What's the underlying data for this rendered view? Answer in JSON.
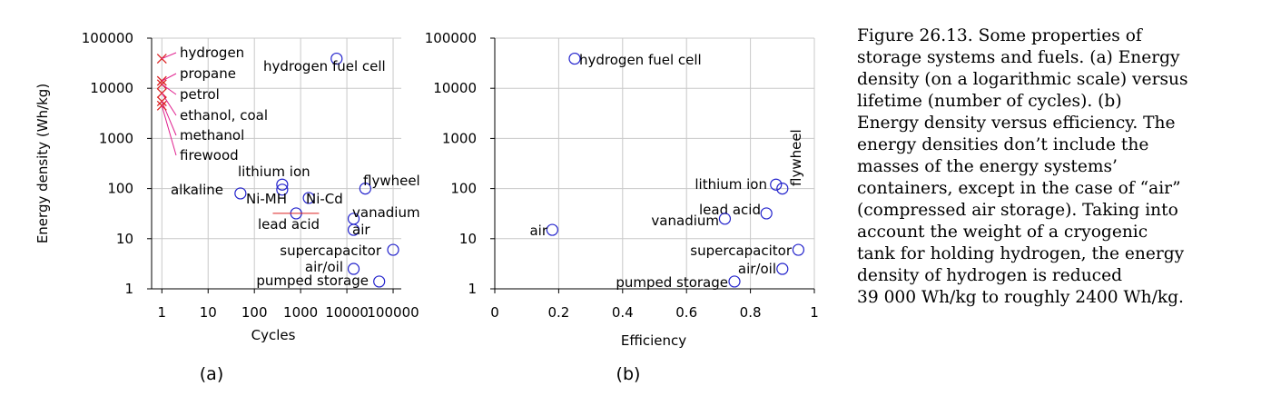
{
  "chart_data": [
    {
      "type": "scatter",
      "subplot_label": "(a)",
      "xlabel": "Cycles",
      "ylabel": "Energy density (Wh/kg)",
      "xscale": "log",
      "yscale": "log",
      "xlim": [
        0.6,
        150000
      ],
      "ylim": [
        1,
        100000
      ],
      "x_ticks": [
        "1",
        "10",
        "100",
        "1000",
        "10000",
        "100000"
      ],
      "y_ticks": [
        "1",
        "10",
        "100",
        "1000",
        "10000",
        "100000"
      ],
      "grid": true,
      "series": [
        {
          "marker": "circle",
          "color": "#2222cc",
          "points": [
            {
              "label": "hydrogen fuel cell",
              "x": 6000,
              "y": 39000
            },
            {
              "label": "alkaline",
              "x": 50,
              "y": 80
            },
            {
              "label": "lithium ion",
              "x": 400,
              "y": 120
            },
            {
              "label": "Ni-MH",
              "x": 400,
              "y": 95
            },
            {
              "label": "Ni-Cd",
              "x": 1500,
              "y": 65
            },
            {
              "label": "lead acid",
              "x": 800,
              "y": 32
            },
            {
              "label": "flywheel",
              "x": 25000,
              "y": 100
            },
            {
              "label": "vanadium",
              "x": 14000,
              "y": 25
            },
            {
              "label": "air",
              "x": 14000,
              "y": 15
            },
            {
              "label": "supercapacitor",
              "x": 100000,
              "y": 6
            },
            {
              "label": "air/oil",
              "x": 14000,
              "y": 2.5
            },
            {
              "label": "pumped storage",
              "x": 50000,
              "y": 1.4
            }
          ]
        },
        {
          "marker": "cross",
          "color": "#dd2222",
          "points": [
            {
              "label": "hydrogen",
              "x": 1,
              "y": 39000
            },
            {
              "label": "propane",
              "x": 1,
              "y": 14000
            },
            {
              "label": "petrol",
              "x": 1,
              "y": 12000
            },
            {
              "label": "ethanol, coal",
              "x": 1,
              "y": 8000
            },
            {
              "label": "methanol",
              "x": 1,
              "y": 5500
            },
            {
              "label": "firewood",
              "x": 1,
              "y": 4500
            }
          ]
        }
      ]
    },
    {
      "type": "scatter",
      "subplot_label": "(b)",
      "xlabel": "Efficiency",
      "ylabel": "",
      "xscale": "linear",
      "yscale": "log",
      "xlim": [
        0,
        1
      ],
      "ylim": [
        1,
        100000
      ],
      "x_ticks": [
        "0",
        "0.2",
        "0.4",
        "0.6",
        "0.8",
        "1"
      ],
      "y_ticks": [
        "1",
        "10",
        "100",
        "1000",
        "10000",
        "100000"
      ],
      "grid": true,
      "series": [
        {
          "marker": "circle",
          "color": "#2222cc",
          "points": [
            {
              "label": "hydrogen fuel cell",
              "x": 0.25,
              "y": 39000
            },
            {
              "label": "flywheel",
              "x": 0.9,
              "y": 100
            },
            {
              "label": "lithium ion",
              "x": 0.88,
              "y": 120
            },
            {
              "label": "lead acid",
              "x": 0.85,
              "y": 32
            },
            {
              "label": "vanadium",
              "x": 0.72,
              "y": 25
            },
            {
              "label": "air",
              "x": 0.18,
              "y": 15
            },
            {
              "label": "supercapacitor",
              "x": 0.95,
              "y": 6
            },
            {
              "label": "air/oil",
              "x": 0.9,
              "y": 2.5
            },
            {
              "label": "pumped storage",
              "x": 0.75,
              "y": 1.4
            }
          ]
        }
      ]
    }
  ],
  "caption": {
    "lines": [
      "Figure 26.13. Some properties of",
      "storage systems and fuels. (a) Energy",
      "density (on a logarithmic scale) versus",
      "lifetime (number of cycles). (b)",
      "Energy density versus efficiency. The",
      "energy densities don’t include the",
      "masses of the energy systems’",
      "containers, except in the case of “air”",
      "(compressed air storage). Taking into",
      "account the weight of a cryogenic",
      "tank for holding hydrogen, the energy",
      "density of hydrogen is reduced",
      "39 000 Wh/kg to roughly 2400 Wh/kg."
    ]
  }
}
